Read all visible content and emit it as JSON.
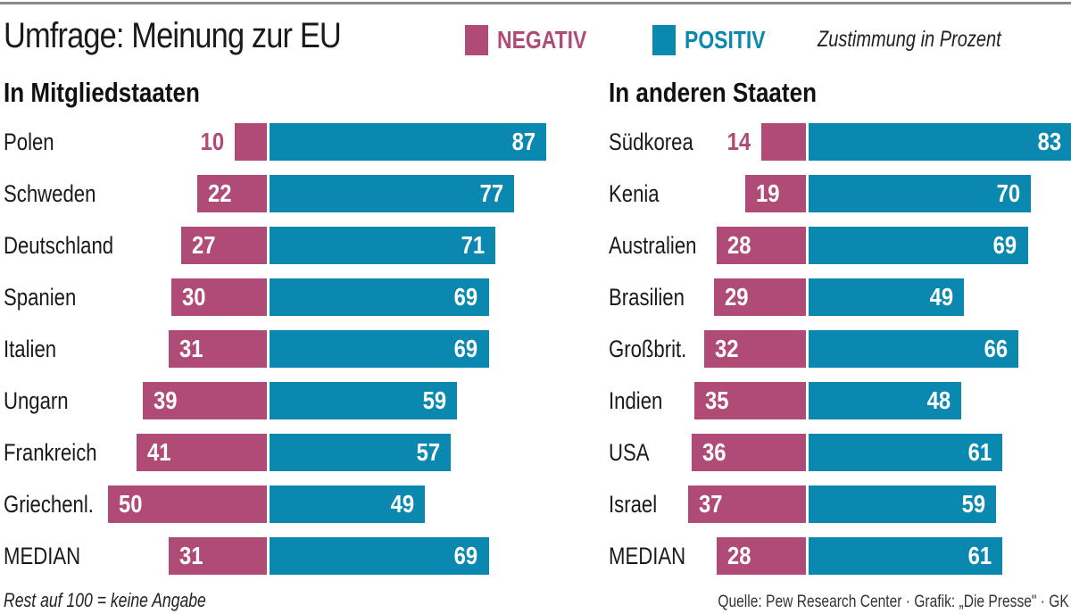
{
  "header": {
    "title": "Umfrage: Meinung zur EU",
    "legend": [
      {
        "key": "negativ",
        "label": "NEGATIV",
        "color": "#b04a76"
      },
      {
        "key": "positiv",
        "label": "POSITIV",
        "color": "#0a88b0"
      }
    ],
    "legend_note": "Zustimmung in Prozent"
  },
  "footer": {
    "footnote": "Rest auf 100 = keine Angabe",
    "source": "Quelle: Pew Research Center · Grafik: „Die Presse\" · GK"
  },
  "colors": {
    "negative": "#b04a76",
    "positive": "#0a88b0"
  },
  "chart_data": [
    {
      "type": "bar",
      "orientation": "horizontal-diverging",
      "title": "In Mitgliedstaaten",
      "unit": "Prozent",
      "categories": [
        "Polen",
        "Schweden",
        "Deutschland",
        "Spanien",
        "Italien",
        "Ungarn",
        "Frankreich",
        "Griechenl.",
        "MEDIAN"
      ],
      "series": [
        {
          "name": "NEGATIV",
          "values": [
            10,
            22,
            27,
            30,
            31,
            39,
            41,
            50,
            31
          ]
        },
        {
          "name": "POSITIV",
          "values": [
            87,
            77,
            71,
            69,
            69,
            59,
            57,
            49,
            69
          ]
        }
      ],
      "xlim": [
        0,
        100
      ],
      "grid": false
    },
    {
      "type": "bar",
      "orientation": "horizontal-diverging",
      "title": "In anderen Staaten",
      "unit": "Prozent",
      "categories": [
        "Südkorea",
        "Kenia",
        "Australien",
        "Brasilien",
        "Großbrit.",
        "Indien",
        "USA",
        "Israel",
        "MEDIAN"
      ],
      "series": [
        {
          "name": "NEGATIV",
          "values": [
            14,
            19,
            28,
            29,
            32,
            35,
            36,
            37,
            28
          ]
        },
        {
          "name": "POSITIV",
          "values": [
            83,
            70,
            69,
            49,
            66,
            48,
            61,
            59,
            61
          ]
        }
      ],
      "xlim": [
        0,
        100
      ],
      "grid": false
    }
  ]
}
